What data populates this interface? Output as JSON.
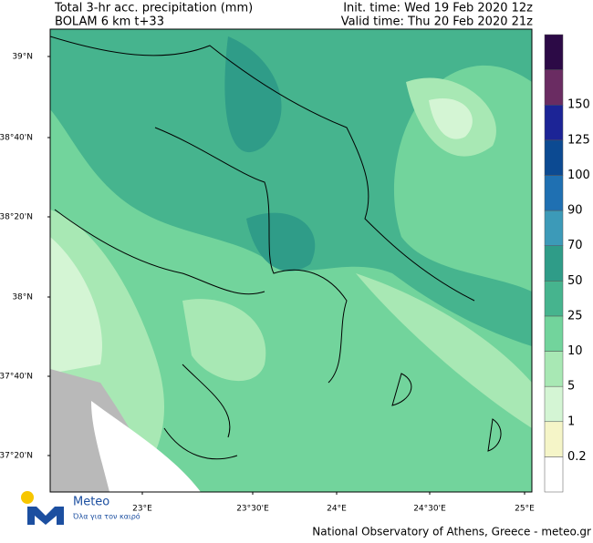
{
  "header": {
    "title_left": [
      "Total 3-hr acc. precipitation (mm)",
      "BOLAM 6 km t+33"
    ],
    "title_right": [
      "Init. time: Wed 19 Feb 2020 12z",
      "Valid time: Thu 20 Feb 2020 21z"
    ]
  },
  "map": {
    "lat_labels": [
      "39°N",
      "38°40'N",
      "38°20'N",
      "38°N",
      "37°40'N",
      "37°20'N"
    ],
    "lon_labels": [
      "23°E",
      "23°30'E",
      "24°E",
      "24°30'E",
      "25°E"
    ]
  },
  "colorbar": {
    "labels": [
      0.2,
      1,
      5,
      10,
      25,
      50,
      70,
      90,
      100,
      125,
      150
    ],
    "colors": [
      "#ffffff",
      "#f5f5c8",
      "#d4f5d4",
      "#a8e8b4",
      "#72d49c",
      "#46b48e",
      "#2f9c88",
      "#3c9ab8",
      "#1f70b2",
      "#0c4a92",
      "#1c2496",
      "#6a2c62",
      "#2c0a46"
    ]
  },
  "footer": {
    "logo_name": "Meteo",
    "logo_slogan": "Όλα για τον καιρό",
    "credit": "National Observatory of Athens, Greece - meteo.gr"
  }
}
